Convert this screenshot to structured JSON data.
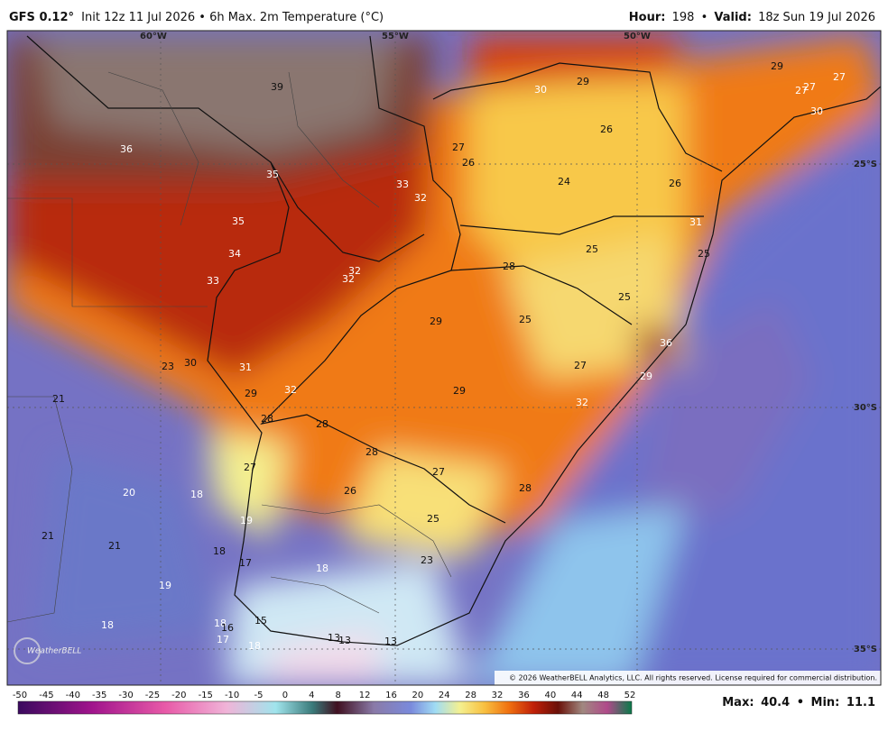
{
  "header": {
    "model": "GFS 0.12°",
    "description": "Init 12z 11 Jul 2026 • 6h Max. 2m Temperature (°C)",
    "hour_label": "Hour:",
    "hour": "198",
    "separator": "•",
    "valid_label": "Valid:",
    "valid": "18z Sun 19 Jul 2026"
  },
  "map": {
    "grid_labels": [
      "60°W",
      "55°W",
      "50°W",
      "25°S",
      "30°S",
      "35°S"
    ],
    "labels": [
      "39",
      "36",
      "35",
      "35",
      "34",
      "33",
      "33",
      "32",
      "32",
      "32",
      "30",
      "29",
      "29",
      "27",
      "27",
      "27",
      "30",
      "27",
      "26",
      "26",
      "24",
      "26",
      "31",
      "25",
      "28",
      "25",
      "25",
      "29",
      "25",
      "36",
      "27",
      "29",
      "23",
      "30",
      "31",
      "29",
      "32",
      "29",
      "32",
      "21",
      "28",
      "28",
      "28",
      "27",
      "26",
      "28",
      "27",
      "20",
      "18",
      "25",
      "19",
      "21",
      "21",
      "18",
      "17",
      "18",
      "23",
      "19",
      "18",
      "15",
      "18",
      "16",
      "17",
      "18",
      "13",
      "13",
      "13"
    ],
    "copyright": "© 2026 WeatherBELL Analytics, LLC. All rights reserved. License required for commercial distribution.",
    "logo": "WeatherBELL"
  },
  "colorbar": {
    "ticks": [
      -50,
      -45,
      -40,
      -35,
      -30,
      -25,
      -20,
      -15,
      -10,
      -5,
      0,
      4,
      8,
      12,
      16,
      20,
      24,
      28,
      32,
      36,
      40,
      44,
      48,
      52
    ]
  },
  "footer": {
    "max_label": "Max:",
    "max": "40.4",
    "separator": "•",
    "min_label": "Min:",
    "min": "11.1"
  }
}
